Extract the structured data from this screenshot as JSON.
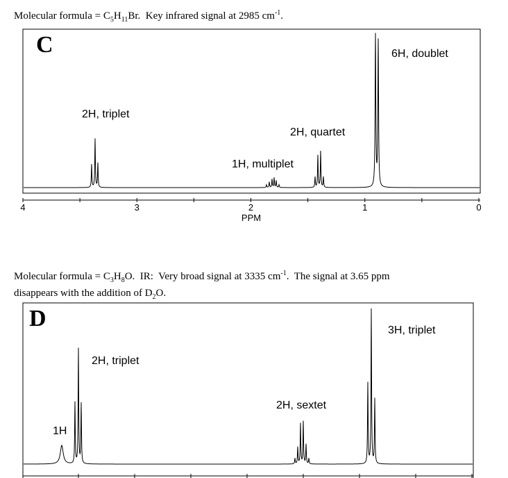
{
  "problems": [
    {
      "statement": [
        "Molecular formula = C",
        "5",
        "H",
        "11",
        "Br.  Key infrared signal at 2985 cm",
        "-1",
        "."
      ],
      "spectrum": {
        "letter": "C",
        "labels": [
          "6H, doublet",
          "2H, triplet",
          "2H, quartet",
          "1H, multiplet"
        ],
        "axis_ticks": [
          "4",
          "3",
          "2",
          "1",
          "0"
        ],
        "axis_title": "PPM"
      }
    },
    {
      "statement": [
        "Molecular formula = C",
        "3",
        "H",
        "8",
        "O.  IR:  Very broad signal at 3335 cm",
        "-1",
        ".  The signal at 3.65 ppm",
        "disappears with the addition of D",
        "2",
        "O."
      ],
      "spectrum": {
        "letter": "D",
        "labels": [
          "3H, triplet",
          "2H, triplet",
          "2H, sextet",
          "1H"
        ]
      }
    }
  ]
}
